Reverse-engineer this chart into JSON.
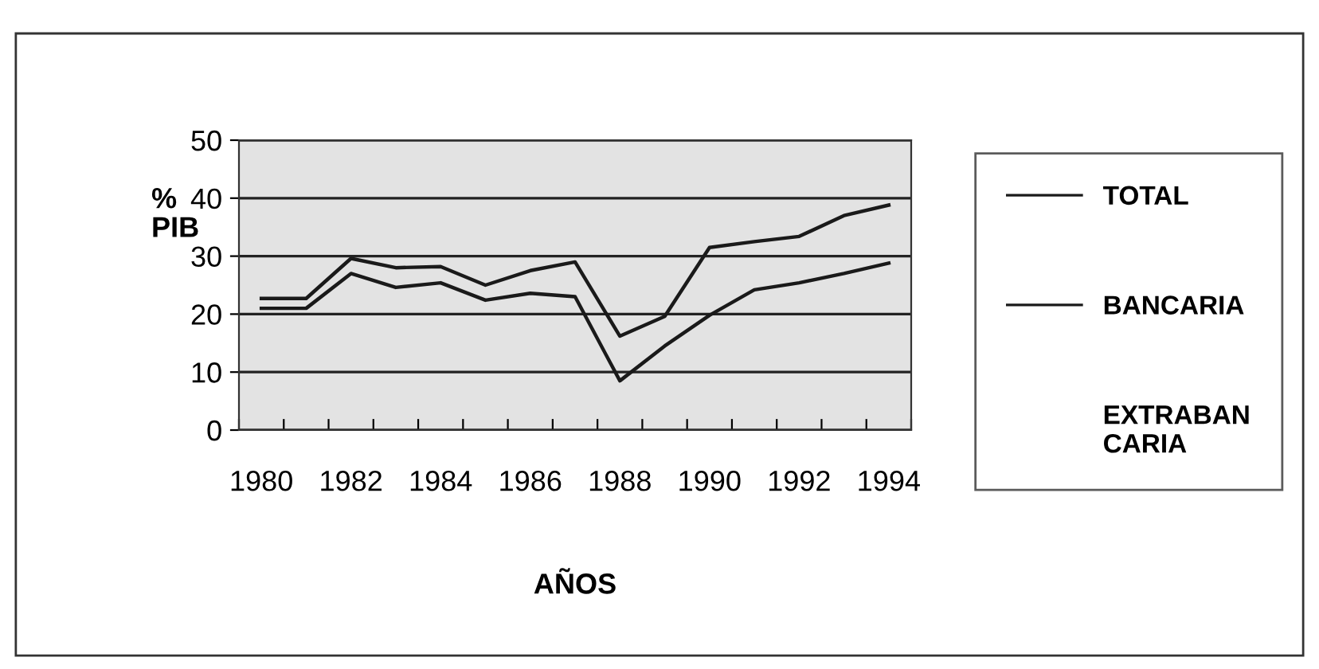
{
  "chart_data": {
    "type": "line",
    "categories": [
      "1980",
      null,
      "1982",
      null,
      "1984",
      null,
      "1986",
      null,
      "1988",
      null,
      "1990",
      null,
      "1992",
      null,
      "1994"
    ],
    "series": [
      {
        "name": "TOTAL",
        "color": "#1a1a1a",
        "values": [
          22.7,
          22.7,
          29.6,
          28,
          28.2,
          25,
          27.5,
          29,
          16.2,
          19.6,
          31.5,
          32.5,
          33.4,
          37,
          38.8
        ]
      },
      {
        "name": "BANCARIA",
        "color": "#1a1a1a",
        "values": [
          21,
          21,
          27,
          24.6,
          25.4,
          22.4,
          23.6,
          23,
          8.5,
          14.5,
          19.8,
          24.2,
          25.4,
          27,
          28.8
        ]
      },
      {
        "name": "EXTRABAN\nCARIA",
        "color": null,
        "values": [
          null,
          null,
          null,
          null,
          null,
          null,
          null,
          null,
          null,
          null,
          null,
          null,
          null,
          null,
          null
        ]
      }
    ],
    "xlabel": "AÑOS",
    "ylabel": "%\nPIB",
    "ylim": [
      0,
      50
    ],
    "yticks": [
      0,
      10,
      20,
      30,
      40,
      50
    ],
    "grid": "y",
    "legend": "right",
    "marker": "none",
    "line_style": "solid"
  }
}
